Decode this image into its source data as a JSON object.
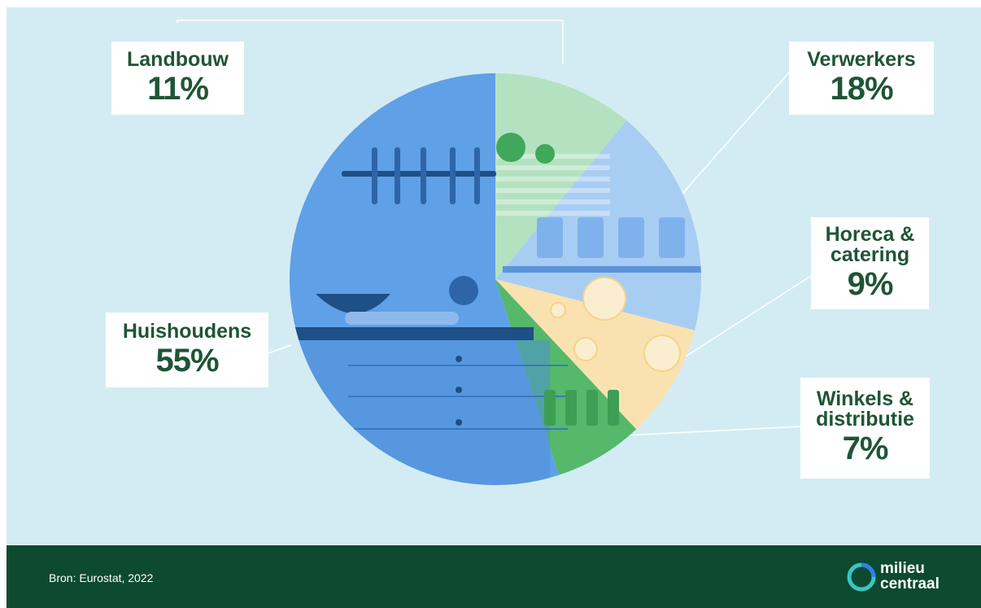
{
  "chart_data": {
    "type": "pie",
    "categories": [
      "Landbouw",
      "Verwerkers",
      "Horeca & catering",
      "Winkels & distributie",
      "Huishoudens"
    ],
    "values": [
      11,
      18,
      9,
      7,
      55
    ],
    "labels": [
      {
        "name_lines": [
          "Landbouw"
        ],
        "value": "11%"
      },
      {
        "name_lines": [
          "Verwerkers"
        ],
        "value": "18%"
      },
      {
        "name_lines": [
          "Horeca &",
          "catering"
        ],
        "value": "9%"
      },
      {
        "name_lines": [
          "Winkels &",
          "distributie"
        ],
        "value": "7%"
      },
      {
        "name_lines": [
          "Huishoudens"
        ],
        "value": "55%"
      }
    ],
    "colors": [
      "#b4e2c0",
      "#a8cdf3",
      "#f9e2b0",
      "#55b86a",
      "#5fa0e6"
    ],
    "start": "top, clockwise"
  },
  "footer": {
    "source": "Bron: Eurostat, 2022",
    "logo_line1": "milieu",
    "logo_line2": "centraal"
  },
  "colors": {
    "background": "#d3ecf3",
    "footer": "#0d4a30",
    "label_text": "#1f5535",
    "logo_ring_a": "#3cc4c4",
    "logo_ring_b": "#2f80ed"
  }
}
